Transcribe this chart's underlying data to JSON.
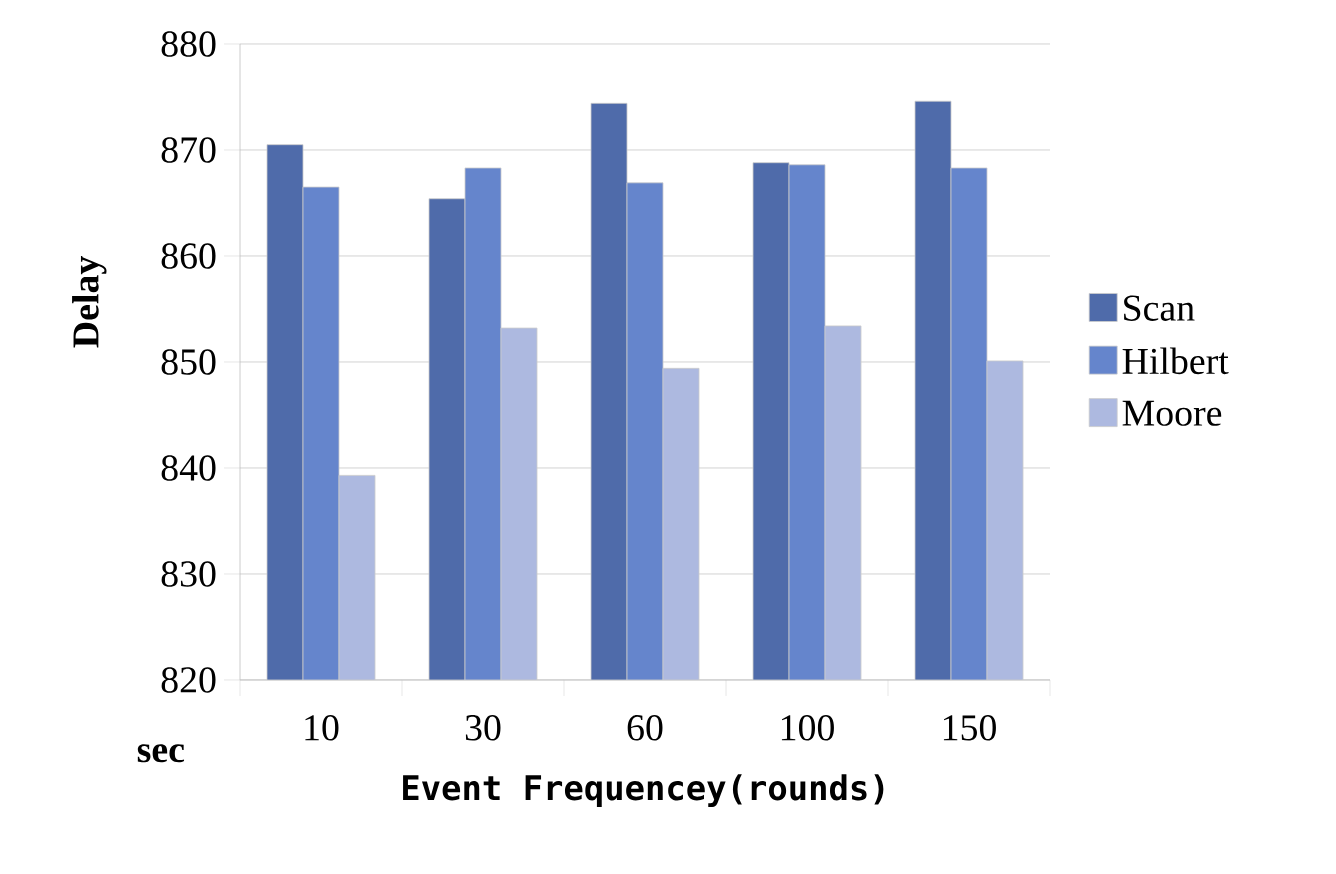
{
  "chart_data": {
    "type": "bar",
    "xlabel": "Event Frequencey(rounds)",
    "ylabel": "Delay",
    "annotations": [
      "sec"
    ],
    "categories": [
      "10",
      "30",
      "60",
      "100",
      "150"
    ],
    "series": [
      {
        "name": "Scan",
        "color": "#4f6baa",
        "values": [
          870.5,
          865.4,
          874.4,
          868.8,
          874.6
        ]
      },
      {
        "name": "Hilbert",
        "color": "#6585cc",
        "values": [
          866.5,
          868.3,
          866.9,
          868.6,
          868.3
        ]
      },
      {
        "name": "Moore",
        "color": "#adb9e0",
        "values": [
          839.3,
          853.2,
          849.4,
          853.4,
          850.1
        ]
      }
    ],
    "ylim": [
      820,
      880
    ],
    "yticks": [
      820,
      830,
      840,
      850,
      860,
      870,
      880
    ],
    "grid": "y",
    "legend": "right"
  }
}
